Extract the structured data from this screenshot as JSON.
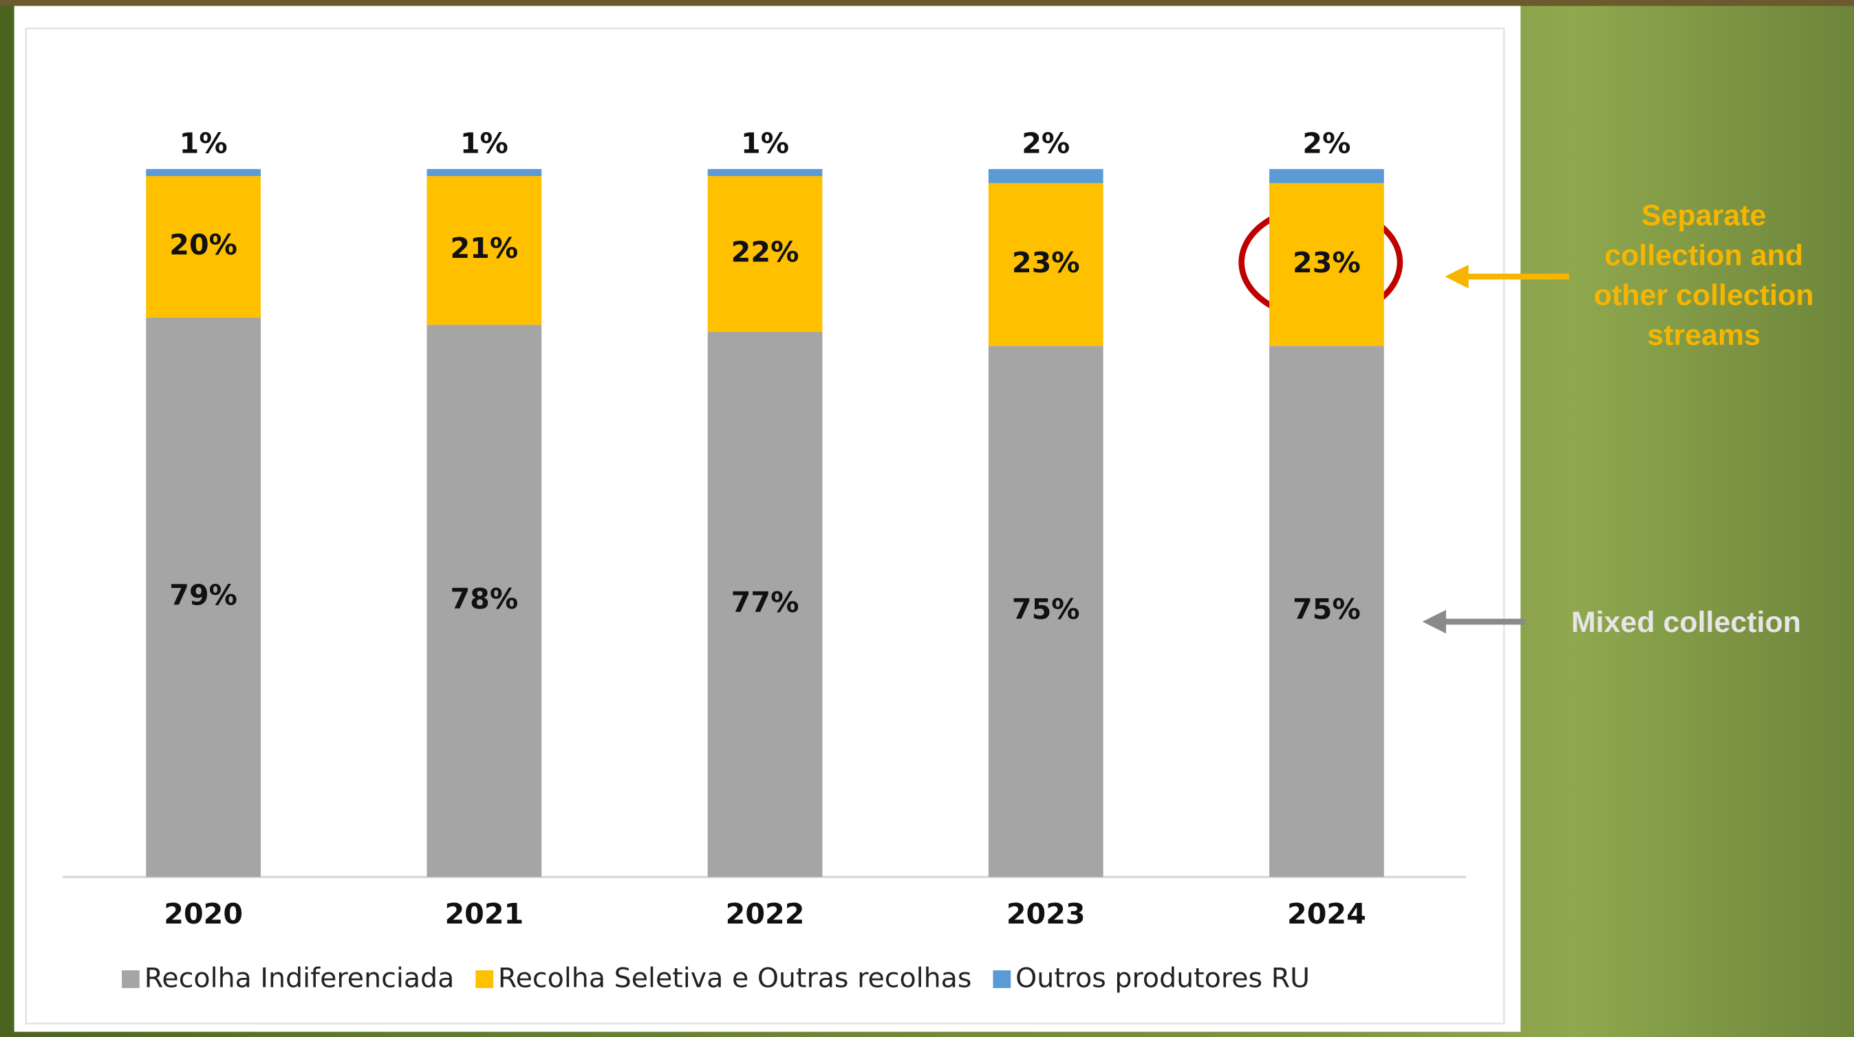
{
  "chart_data": {
    "type": "stacked_bar",
    "categories": [
      "2020",
      "2021",
      "2022",
      "2023",
      "2024"
    ],
    "series": [
      {
        "name": "Recolha Indiferenciada",
        "color": "#a5a5a5",
        "values": [
          79,
          78,
          77,
          75,
          75
        ],
        "value_labels": [
          "79%",
          "78%",
          "77%",
          "75%",
          "75%"
        ]
      },
      {
        "name": "Recolha Seletiva e Outras recolhas",
        "color": "#ffc000",
        "values": [
          20,
          21,
          22,
          23,
          23
        ],
        "value_labels": [
          "20%",
          "21%",
          "22%",
          "23%",
          "23%"
        ]
      },
      {
        "name": "Outros produtores RU",
        "color": "#5b9bd5",
        "values": [
          1,
          1,
          1,
          2,
          2
        ],
        "value_labels": [
          "1%",
          "1%",
          "1%",
          "2%",
          "2%"
        ]
      }
    ],
    "ylim": [
      0,
      100
    ],
    "annotations": [
      {
        "lines": [
          "Separate",
          "collection and",
          "other collection",
          "streams"
        ],
        "color": "#f7b500"
      },
      {
        "lines": [
          "Mixed collection"
        ],
        "color": "#e6e6e6"
      }
    ]
  }
}
